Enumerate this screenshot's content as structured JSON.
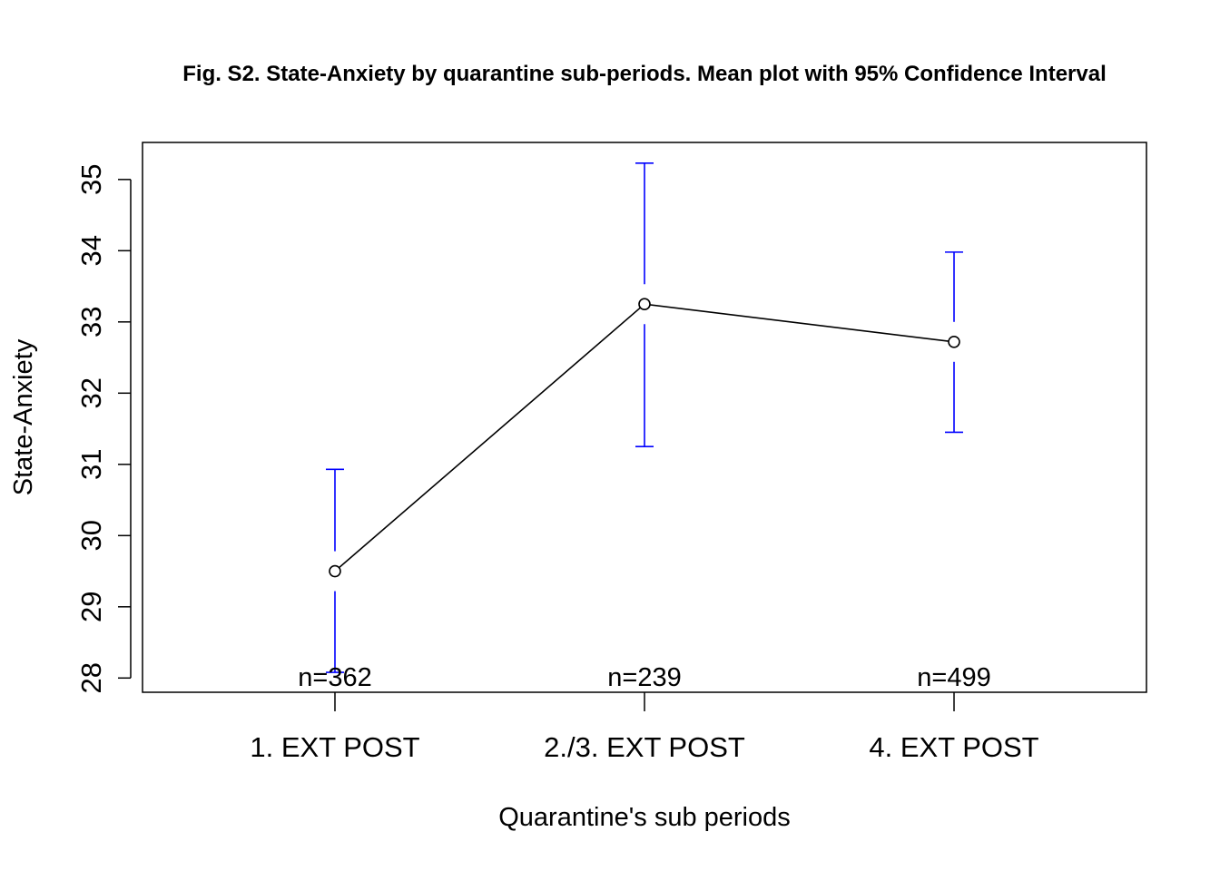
{
  "chart_data": {
    "type": "line",
    "title": "Fig. S2. State-Anxiety by quarantine sub-periods. Mean plot with 95% Confidence Interval",
    "xlabel": "Quarantine's sub periods",
    "ylabel": "State-Anxiety",
    "categories": [
      "1. EXT POST",
      "2./3. EXT POST",
      "4. EXT POST"
    ],
    "means": [
      29.5,
      33.25,
      32.72
    ],
    "ci_lower": [
      28.08,
      31.25,
      31.45
    ],
    "ci_upper": [
      30.93,
      35.23,
      33.98
    ],
    "n_labels": [
      "n=362",
      "n=239",
      "n=499"
    ],
    "yticks": [
      28,
      29,
      30,
      31,
      32,
      33,
      34,
      35
    ],
    "ylim": [
      27.8,
      35.52
    ],
    "grid": false,
    "colors": {
      "line": "#000000",
      "ci": "#0000ff"
    }
  }
}
